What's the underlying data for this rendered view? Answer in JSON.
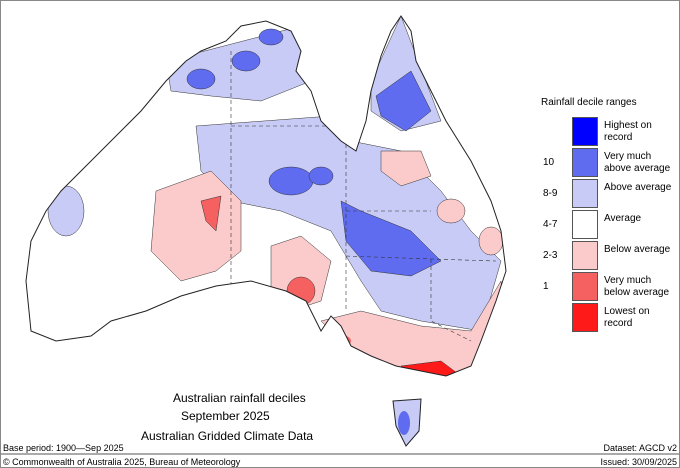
{
  "title": {
    "line1": "Australian rainfall deciles",
    "line2": "September 2025",
    "line3": "Australian Gridded Climate Data"
  },
  "base_period": "Base period: 1900—Sep 2025",
  "dataset": "Dataset: AGCD v2",
  "copyright": "© Commonwealth of Australia 2025, Bureau of Meteorology",
  "issued": "Issued: 30/09/2025",
  "legend": {
    "title": "Rainfall decile ranges",
    "items": [
      {
        "label": "Highest on record",
        "decile": "",
        "color": "#0000ff"
      },
      {
        "label": "Very much above average",
        "decile": "10",
        "color": "#5f6cf0"
      },
      {
        "label": "Above average",
        "decile": "8-9",
        "color": "#c8cbf5"
      },
      {
        "label": "Average",
        "decile": "4-7",
        "color": "#ffffff"
      },
      {
        "label": "Below average",
        "decile": "2-3",
        "color": "#fbcaca"
      },
      {
        "label": "Very much below average",
        "decile": "1",
        "color": "#f56060"
      },
      {
        "label": "Lowest on record",
        "decile": "",
        "color": "#ff1a1a"
      }
    ]
  }
}
